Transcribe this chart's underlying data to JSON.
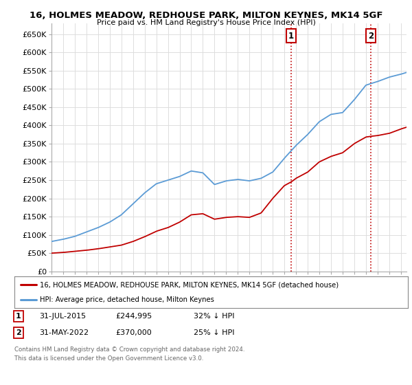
{
  "title": "16, HOLMES MEADOW, REDHOUSE PARK, MILTON KEYNES, MK14 5GF",
  "subtitle": "Price paid vs. HM Land Registry's House Price Index (HPI)",
  "ylabel_ticks": [
    "£0",
    "£50K",
    "£100K",
    "£150K",
    "£200K",
    "£250K",
    "£300K",
    "£350K",
    "£400K",
    "£450K",
    "£500K",
    "£550K",
    "£600K",
    "£650K"
  ],
  "ytick_values": [
    0,
    50000,
    100000,
    150000,
    200000,
    250000,
    300000,
    350000,
    400000,
    450000,
    500000,
    550000,
    600000,
    650000
  ],
  "ylim": [
    0,
    680000
  ],
  "xlim_start": 1995.0,
  "xlim_end": 2025.5,
  "hpi_color": "#5b9bd5",
  "price_color": "#c00000",
  "vline_color": "#c00000",
  "marker1_x": 2015.58,
  "marker2_x": 2022.42,
  "sale1_date": "31-JUL-2015",
  "sale1_price": "£244,995",
  "sale1_hpi": "32% ↓ HPI",
  "sale2_date": "31-MAY-2022",
  "sale2_price": "£370,000",
  "sale2_hpi": "25% ↓ HPI",
  "legend_property": "16, HOLMES MEADOW, REDHOUSE PARK, MILTON KEYNES, MK14 5GF (detached house)",
  "legend_hpi": "HPI: Average price, detached house, Milton Keynes",
  "footnote": "Contains HM Land Registry data © Crown copyright and database right 2024.\nThis data is licensed under the Open Government Licence v3.0.",
  "background_color": "#ffffff",
  "grid_color": "#dddddd"
}
